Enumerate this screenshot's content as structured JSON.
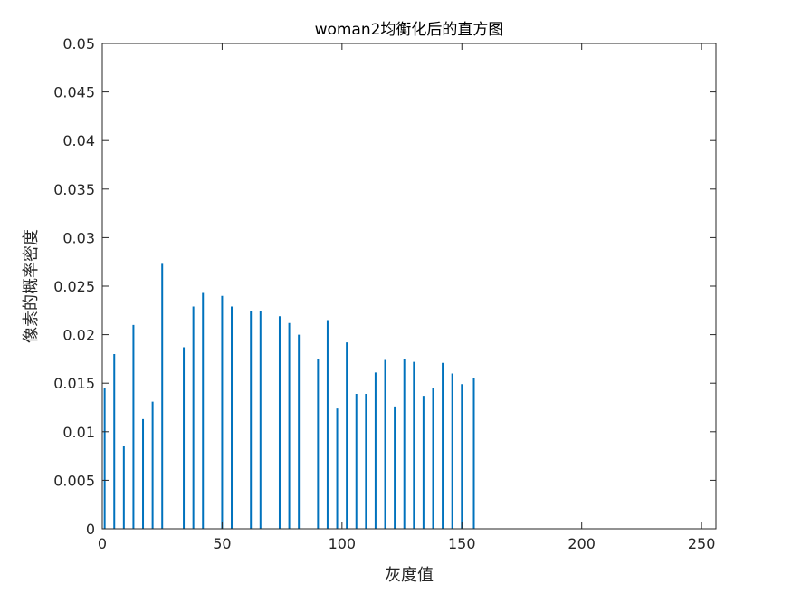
{
  "chart_data": {
    "type": "bar",
    "title": "woman2均衡化后的直方图",
    "xlabel": "灰度值",
    "ylabel": "像素的概率密度",
    "xlim": [
      0,
      256
    ],
    "ylim": [
      0,
      0.05
    ],
    "xticks": [
      0,
      50,
      100,
      150,
      200,
      250
    ],
    "xtick_labels": [
      "0",
      "50",
      "100",
      "150",
      "200",
      "250"
    ],
    "yticks": [
      0,
      0.005,
      0.01,
      0.015,
      0.02,
      0.025,
      0.03,
      0.035,
      0.04,
      0.045,
      0.05
    ],
    "ytick_labels": [
      "0",
      "0.005",
      "0.01",
      "0.015",
      "0.02",
      "0.025",
      "0.03",
      "0.035",
      "0.04",
      "0.045",
      "0.05"
    ],
    "grid": false,
    "bar_color": "#0072BD",
    "points": [
      {
        "x": 1,
        "y": 0.0145
      },
      {
        "x": 5,
        "y": 0.018
      },
      {
        "x": 9,
        "y": 0.0085
      },
      {
        "x": 13,
        "y": 0.021
      },
      {
        "x": 17,
        "y": 0.0113
      },
      {
        "x": 21,
        "y": 0.0131
      },
      {
        "x": 25,
        "y": 0.0273
      },
      {
        "x": 34,
        "y": 0.0187
      },
      {
        "x": 38,
        "y": 0.0229
      },
      {
        "x": 42,
        "y": 0.0243
      },
      {
        "x": 50,
        "y": 0.024
      },
      {
        "x": 54,
        "y": 0.0229
      },
      {
        "x": 62,
        "y": 0.0224
      },
      {
        "x": 66,
        "y": 0.0224
      },
      {
        "x": 74,
        "y": 0.0219
      },
      {
        "x": 78,
        "y": 0.0212
      },
      {
        "x": 82,
        "y": 0.02
      },
      {
        "x": 90,
        "y": 0.0175
      },
      {
        "x": 94,
        "y": 0.0215
      },
      {
        "x": 98,
        "y": 0.0124
      },
      {
        "x": 102,
        "y": 0.0192
      },
      {
        "x": 106,
        "y": 0.0139
      },
      {
        "x": 110,
        "y": 0.0139
      },
      {
        "x": 114,
        "y": 0.0161
      },
      {
        "x": 118,
        "y": 0.0174
      },
      {
        "x": 122,
        "y": 0.0126
      },
      {
        "x": 126,
        "y": 0.0175
      },
      {
        "x": 130,
        "y": 0.0172
      },
      {
        "x": 134,
        "y": 0.0137
      },
      {
        "x": 138,
        "y": 0.0145
      },
      {
        "x": 142,
        "y": 0.0171
      },
      {
        "x": 146,
        "y": 0.016
      },
      {
        "x": 150,
        "y": 0.0149
      },
      {
        "x": 155,
        "y": 0.0155
      }
    ]
  }
}
